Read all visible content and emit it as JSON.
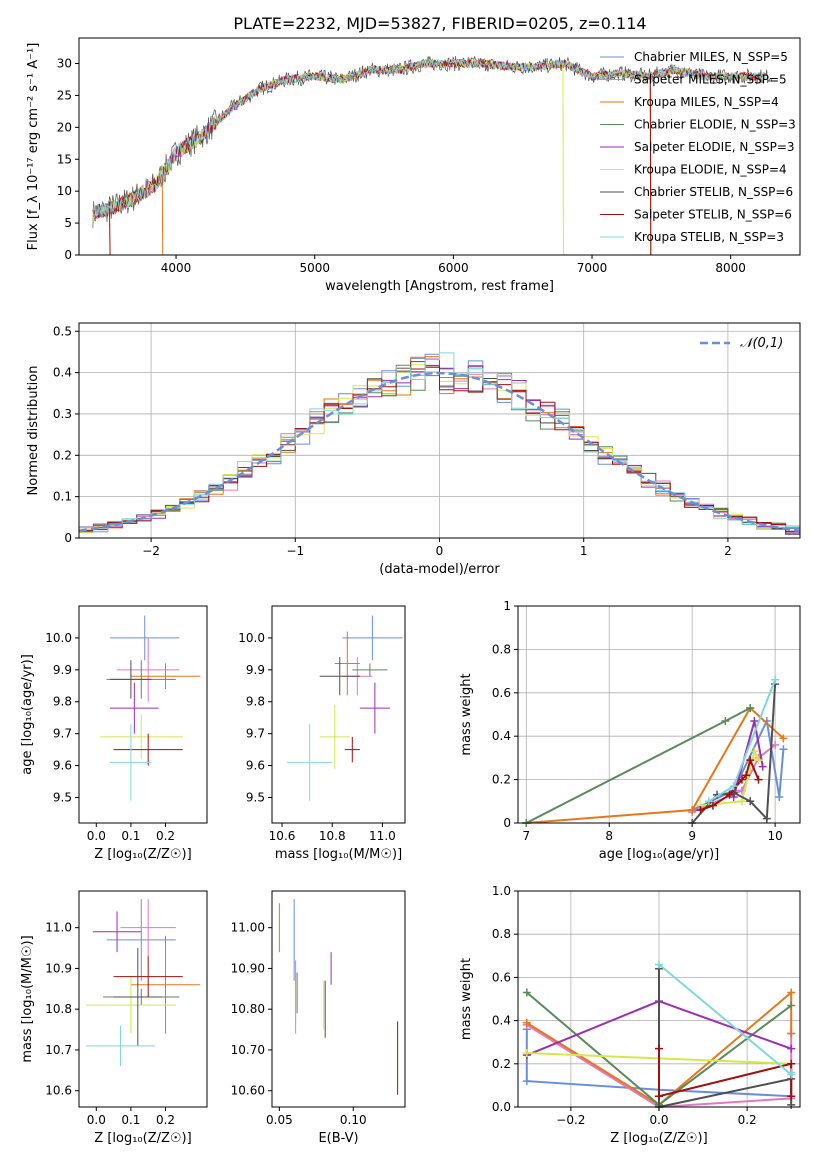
{
  "title": "PLATE=2232, MJD=53827, FIBERID=0205, z=0.114",
  "colors": [
    "#6a8fd8",
    "#e377c2",
    "#e6771a",
    "#5a8a5a",
    "#9b30b0",
    "#d4e84a",
    "#505050",
    "#a01010",
    "#7fd8dc"
  ],
  "chart_data": [
    {
      "id": "spectrum",
      "type": "line",
      "xlabel": "wavelength [Angstrom, rest frame]",
      "ylabel": "Flux [f_λ 10⁻¹⁷ erg cm⁻² s⁻¹ A⁻¹]",
      "xlim": [
        3300,
        8500
      ],
      "ylim": [
        0,
        34
      ],
      "xticks": [
        4000,
        5000,
        6000,
        7000,
        8000
      ],
      "yticks": [
        0,
        5,
        10,
        15,
        20,
        25,
        30
      ],
      "grid": false,
      "legend": "right",
      "continuum": [
        [
          3400,
          6.5
        ],
        [
          3550,
          7.5
        ],
        [
          3700,
          9
        ],
        [
          3850,
          11
        ],
        [
          4000,
          16
        ],
        [
          4200,
          19
        ],
        [
          4400,
          23
        ],
        [
          4600,
          26
        ],
        [
          4800,
          27.5
        ],
        [
          5000,
          28
        ],
        [
          5200,
          27.5
        ],
        [
          5400,
          29
        ],
        [
          5600,
          29
        ],
        [
          5800,
          30
        ],
        [
          6000,
          30
        ],
        [
          6200,
          30
        ],
        [
          6400,
          29.5
        ],
        [
          6600,
          29.5
        ],
        [
          6800,
          30
        ],
        [
          7000,
          28
        ],
        [
          7200,
          28.5
        ],
        [
          7400,
          28
        ],
        [
          7600,
          29
        ],
        [
          7800,
          28
        ],
        [
          8000,
          28
        ],
        [
          8250,
          28
        ]
      ],
      "series": [
        {
          "name": "Chabrier MILES, N_SSP=5"
        },
        {
          "name": "Salpeter MILES, N_SSP=5"
        },
        {
          "name": "Kroupa MILES, N_SSP=4"
        },
        {
          "name": "Chabrier ELODIE, N_SSP=3"
        },
        {
          "name": "Salpeter ELODIE, N_SSP=3"
        },
        {
          "name": "Kroupa ELODIE, N_SSP=4"
        },
        {
          "name": "Chabrier STELIB, N_SSP=6"
        },
        {
          "name": "Salpeter STELIB, N_SSP=6"
        },
        {
          "name": "Kroupa STELIB, N_SSP=3"
        }
      ]
    },
    {
      "id": "residuals",
      "type": "histogram",
      "xlabel": "(data-model)/error",
      "ylabel": "Normed distribution",
      "xlim": [
        -2.5,
        2.5
      ],
      "ylim": [
        0,
        0.52
      ],
      "xticks": [
        -2,
        -1,
        0,
        1,
        2
      ],
      "yticks": [
        0.0,
        0.1,
        0.2,
        0.3,
        0.4,
        0.5
      ],
      "grid": true,
      "legend": "top-right",
      "reference": {
        "name": "𝒩(0,1)",
        "mu": 0,
        "sigma": 1
      },
      "bin_width": 0.1
    },
    {
      "id": "age_vs_Z",
      "type": "errorbar",
      "xlabel": "Z [log₁₀(Z/Z☉)]",
      "ylabel": "age  [log₁₀(age/yr)]",
      "xlim": [
        -0.05,
        0.32
      ],
      "ylim": [
        9.42,
        10.1
      ],
      "xticks": [
        0.0,
        0.1,
        0.2
      ],
      "yticks": [
        9.5,
        9.6,
        9.7,
        9.8,
        9.9,
        10.0
      ],
      "grid": false,
      "points": [
        {
          "x": 0.14,
          "xerr": 0.1,
          "y": 10.0,
          "yerr": 0.07
        },
        {
          "x": 0.15,
          "xerr": 0.09,
          "y": 9.9,
          "yerr": 0.1
        },
        {
          "x": 0.2,
          "xerr": 0.1,
          "y": 9.88,
          "yerr": 0.04
        },
        {
          "x": 0.13,
          "xerr": 0.1,
          "y": 9.87,
          "yerr": 0.06
        },
        {
          "x": 0.11,
          "xerr": 0.07,
          "y": 9.78,
          "yerr": 0.08
        },
        {
          "x": 0.13,
          "xerr": 0.12,
          "y": 9.69,
          "yerr": 0.07
        },
        {
          "x": 0.1,
          "xerr": 0.06,
          "y": 9.87,
          "yerr": 0.06
        },
        {
          "x": 0.15,
          "xerr": 0.1,
          "y": 9.65,
          "yerr": 0.05
        },
        {
          "x": 0.1,
          "xerr": 0.06,
          "y": 9.61,
          "yerr": 0.12
        }
      ]
    },
    {
      "id": "age_vs_mass",
      "type": "errorbar",
      "xlabel": "mass [log₁₀(M/M☉)]",
      "xlim": [
        10.56,
        11.09
      ],
      "ylim": [
        9.42,
        10.1
      ],
      "xticks": [
        10.6,
        10.8,
        11.0
      ],
      "yticks": [
        9.5,
        9.6,
        9.7,
        9.8,
        9.9,
        10.0
      ],
      "grid": false,
      "points": [
        {
          "x": 10.96,
          "xerr": 0.12,
          "y": 10.0,
          "yerr": 0.07
        },
        {
          "x": 10.9,
          "xerr": 0.06,
          "y": 9.88,
          "yerr": 0.06
        },
        {
          "x": 10.86,
          "xerr": 0.05,
          "y": 9.92,
          "yerr": 0.1
        },
        {
          "x": 10.95,
          "xerr": 0.07,
          "y": 9.9,
          "yerr": 0.02
        },
        {
          "x": 10.97,
          "xerr": 0.06,
          "y": 9.78,
          "yerr": 0.08
        },
        {
          "x": 10.81,
          "xerr": 0.06,
          "y": 9.69,
          "yerr": 0.1
        },
        {
          "x": 10.83,
          "xerr": 0.08,
          "y": 9.88,
          "yerr": 0.06
        },
        {
          "x": 10.88,
          "xerr": 0.03,
          "y": 9.65,
          "yerr": 0.04
        },
        {
          "x": 10.71,
          "xerr": 0.09,
          "y": 9.61,
          "yerr": 0.12
        }
      ]
    },
    {
      "id": "weight_vs_age",
      "type": "line",
      "xlabel": "age  [log₁₀(age/yr)]",
      "ylabel": "mass weight",
      "xlim": [
        6.9,
        10.3
      ],
      "ylim": [
        0,
        1.0
      ],
      "xticks": [
        7,
        8,
        9,
        10
      ],
      "yticks": [
        0.0,
        0.2,
        0.4,
        0.6,
        0.8,
        1.0
      ],
      "grid": true,
      "series": [
        {
          "x": [
            9.0,
            9.5,
            9.9,
            10.05,
            10.1
          ],
          "y": [
            0.06,
            0.15,
            0.47,
            0.12,
            0.34
          ]
        },
        {
          "x": [
            9.0,
            9.6,
            9.8,
            10.0
          ],
          "y": [
            0.05,
            0.15,
            0.3,
            0.36
          ]
        },
        {
          "x": [
            7.0,
            9.0,
            9.7,
            10.1
          ],
          "y": [
            0.0,
            0.06,
            0.53,
            0.39
          ]
        },
        {
          "x": [
            7.0,
            9.4,
            9.7
          ],
          "y": [
            0.0,
            0.47,
            0.53
          ]
        },
        {
          "x": [
            9.5,
            9.75,
            9.85
          ],
          "y": [
            0.12,
            0.47,
            0.26
          ]
        },
        {
          "x": [
            9.1,
            9.6,
            9.75,
            9.8
          ],
          "y": [
            0.08,
            0.1,
            0.33,
            0.29
          ]
        },
        {
          "x": [
            9.0,
            9.3,
            9.5,
            9.7,
            9.9,
            10.0
          ],
          "y": [
            0.0,
            0.13,
            0.14,
            0.1,
            0.02,
            0.64
          ]
        },
        {
          "x": [
            9.1,
            9.25,
            9.45,
            9.6,
            9.65,
            9.7,
            9.8
          ],
          "y": [
            0.06,
            0.08,
            0.13,
            0.2,
            0.22,
            0.29,
            0.2
          ]
        },
        {
          "x": [
            9.2,
            9.5,
            10.0
          ],
          "y": [
            0.1,
            0.17,
            0.66
          ]
        }
      ]
    },
    {
      "id": "mass_vs_Z",
      "type": "errorbar",
      "xlabel": "Z [log₁₀(Z/Z☉)]",
      "ylabel": "mass [log₁₀(M/M☉)]",
      "xlim": [
        -0.05,
        0.32
      ],
      "ylim": [
        10.56,
        11.09
      ],
      "xticks": [
        0.0,
        0.1,
        0.2
      ],
      "yticks": [
        10.6,
        10.7,
        10.8,
        10.9,
        11.0
      ],
      "grid": false,
      "points": [
        {
          "x": 0.13,
          "xerr": 0.1,
          "y": 10.97,
          "yerr": 0.1
        },
        {
          "x": 0.15,
          "xerr": 0.08,
          "y": 11.0,
          "yerr": 0.07
        },
        {
          "x": 0.2,
          "xerr": 0.1,
          "y": 10.86,
          "yerr": 0.12
        },
        {
          "x": 0.13,
          "xerr": 0.11,
          "y": 10.83,
          "yerr": 0.02
        },
        {
          "x": 0.06,
          "xerr": 0.07,
          "y": 10.99,
          "yerr": 0.05
        },
        {
          "x": 0.1,
          "xerr": 0.13,
          "y": 10.81,
          "yerr": 0.07
        },
        {
          "x": 0.12,
          "xerr": 0.07,
          "y": 10.83,
          "yerr": 0.12
        },
        {
          "x": 0.15,
          "xerr": 0.1,
          "y": 10.88,
          "yerr": 0.05
        },
        {
          "x": 0.07,
          "xerr": 0.1,
          "y": 10.71,
          "yerr": 0.05
        }
      ]
    },
    {
      "id": "mass_vs_ebv",
      "type": "errorbar",
      "xlabel": "E(B-V)",
      "xlim": [
        0.045,
        0.135
      ],
      "ylim": [
        10.56,
        11.09
      ],
      "xticks": [
        0.05,
        0.1
      ],
      "yticks": [
        10.6,
        10.7,
        10.8,
        10.9,
        11.0
      ],
      "grid": false,
      "points": [
        {
          "x": 0.06,
          "xerr": 0,
          "y": 10.97,
          "yerr": 0.1
        },
        {
          "x": 0.061,
          "xerr": 0,
          "y": 10.83,
          "yerr": 0.09
        },
        {
          "x": 0.05,
          "xerr": 0,
          "y": 11.0,
          "yerr": 0.06
        },
        {
          "x": 0.062,
          "xerr": 0,
          "y": 10.84,
          "yerr": 0.05
        },
        {
          "x": 0.085,
          "xerr": 0,
          "y": 10.9,
          "yerr": 0.04
        },
        {
          "x": 0.08,
          "xerr": 0,
          "y": 10.81,
          "yerr": 0.06
        },
        {
          "x": 0.081,
          "xerr": 0,
          "y": 10.8,
          "yerr": 0.07
        },
        {
          "x": 0.13,
          "xerr": 0,
          "y": 10.68,
          "yerr": 0.09
        }
      ]
    },
    {
      "id": "weight_vs_Z",
      "type": "line",
      "xlabel": "Z [log₁₀(Z/Z☉)]",
      "ylabel": "mass weight",
      "xlim": [
        -0.32,
        0.32
      ],
      "ylim": [
        0,
        1.0
      ],
      "xticks": [
        -0.2,
        0.0,
        0.2
      ],
      "yticks": [
        0.0,
        0.2,
        0.4,
        0.6,
        0.8,
        1.0
      ],
      "grid": true,
      "series": [
        {
          "x": [
            -0.3,
            -0.3,
            0.0,
            0.3
          ],
          "y": [
            0.36,
            0.12,
            0.08,
            0.05
          ]
        },
        {
          "x": [
            -0.3,
            0.0,
            0.3,
            0.3
          ],
          "y": [
            0.38,
            0.0,
            0.04,
            0.34
          ]
        },
        {
          "x": [
            -0.3,
            0.0,
            0.3,
            0.3
          ],
          "y": [
            0.39,
            0.01,
            0.53,
            0.34
          ]
        },
        {
          "x": [
            -0.3,
            0.0,
            0.3
          ],
          "y": [
            0.53,
            0.01,
            0.47
          ]
        },
        {
          "x": [
            -0.3,
            0.0,
            0.3
          ],
          "y": [
            0.24,
            0.49,
            0.27
          ]
        },
        {
          "x": [
            -0.3,
            0.3
          ],
          "y": [
            0.25,
            0.2
          ]
        },
        {
          "x": [
            0.0,
            0.0,
            0.3,
            0.3
          ],
          "y": [
            0.64,
            0.0,
            0.13,
            0.01
          ]
        },
        {
          "x": [
            0.0,
            0.0,
            0.3,
            0.3
          ],
          "y": [
            0.27,
            0.05,
            0.2,
            0.05
          ]
        },
        {
          "x": [
            0.0,
            0.3,
            0.3
          ],
          "y": [
            0.66,
            0.15,
            0.16
          ]
        }
      ]
    }
  ]
}
